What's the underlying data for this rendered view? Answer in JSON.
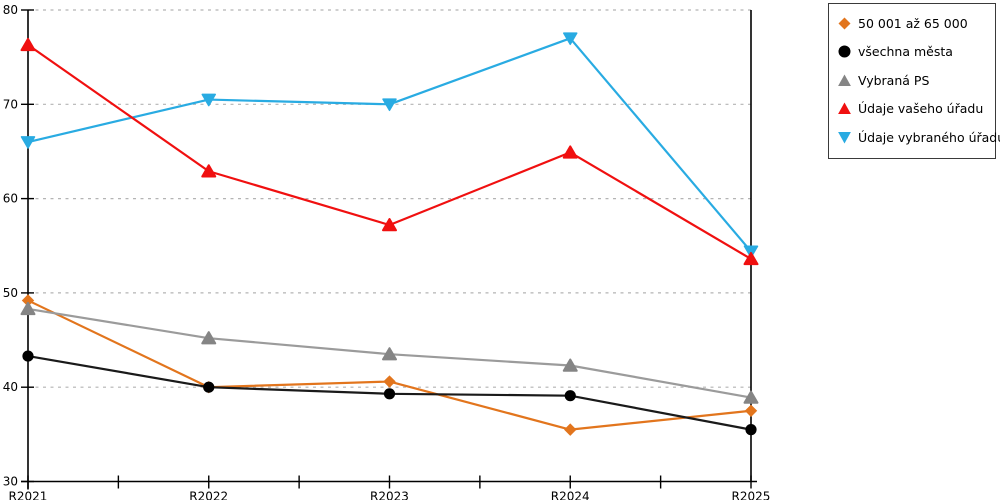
{
  "chart_data": {
    "type": "line",
    "categories": [
      "R2021",
      "R2022",
      "R2023",
      "R2024",
      "R2025"
    ],
    "series": [
      {
        "name": "50 001 až 65 000",
        "color": "#E2751D",
        "line_color": "#E2751D",
        "marker": "diamond",
        "values": [
          49.2,
          40.0,
          40.6,
          35.5,
          37.5
        ]
      },
      {
        "name": "všechna města",
        "color": "#000000",
        "line_color": "#1a1a1a",
        "marker": "circle",
        "values": [
          43.3,
          40.0,
          39.3,
          39.1,
          35.5
        ]
      },
      {
        "name": "Vybraná PS",
        "color": "#858585",
        "line_color": "#9b9b9b",
        "marker": "triangle-up",
        "values": [
          48.3,
          45.2,
          43.5,
          42.3,
          38.9
        ]
      },
      {
        "name": "Údaje vašeho úřadu",
        "color": "#F01010",
        "line_color": "#F01010",
        "marker": "triangle-up",
        "values": [
          76.3,
          62.9,
          57.2,
          64.9,
          53.6
        ]
      },
      {
        "name": "Údaje vybraného úřadu",
        "color": "#29ABE2",
        "line_color": "#29ABE2",
        "marker": "triangle-down",
        "values": [
          66.0,
          70.5,
          70.0,
          77.0,
          54.4
        ]
      }
    ],
    "title": "",
    "xlabel": "",
    "ylabel": "",
    "ylim": [
      30,
      80
    ],
    "yticks": [
      30,
      40,
      50,
      60,
      70,
      80
    ],
    "y_tick_labels": [
      "30",
      "40",
      "50",
      "60",
      "70",
      "80"
    ],
    "grid": "horizontal-dashed",
    "gridline_color": "#b4b4b4",
    "axis_color": "#000000",
    "x_minor_ticks_between_categories": true,
    "legend_position": "outside-top-right",
    "draw_order": [
      "50 001 až 65 000",
      "všechna města",
      "Vybraná PS",
      "Údaje vybraného úřadu",
      "Údaje vašeho úřadu"
    ]
  }
}
